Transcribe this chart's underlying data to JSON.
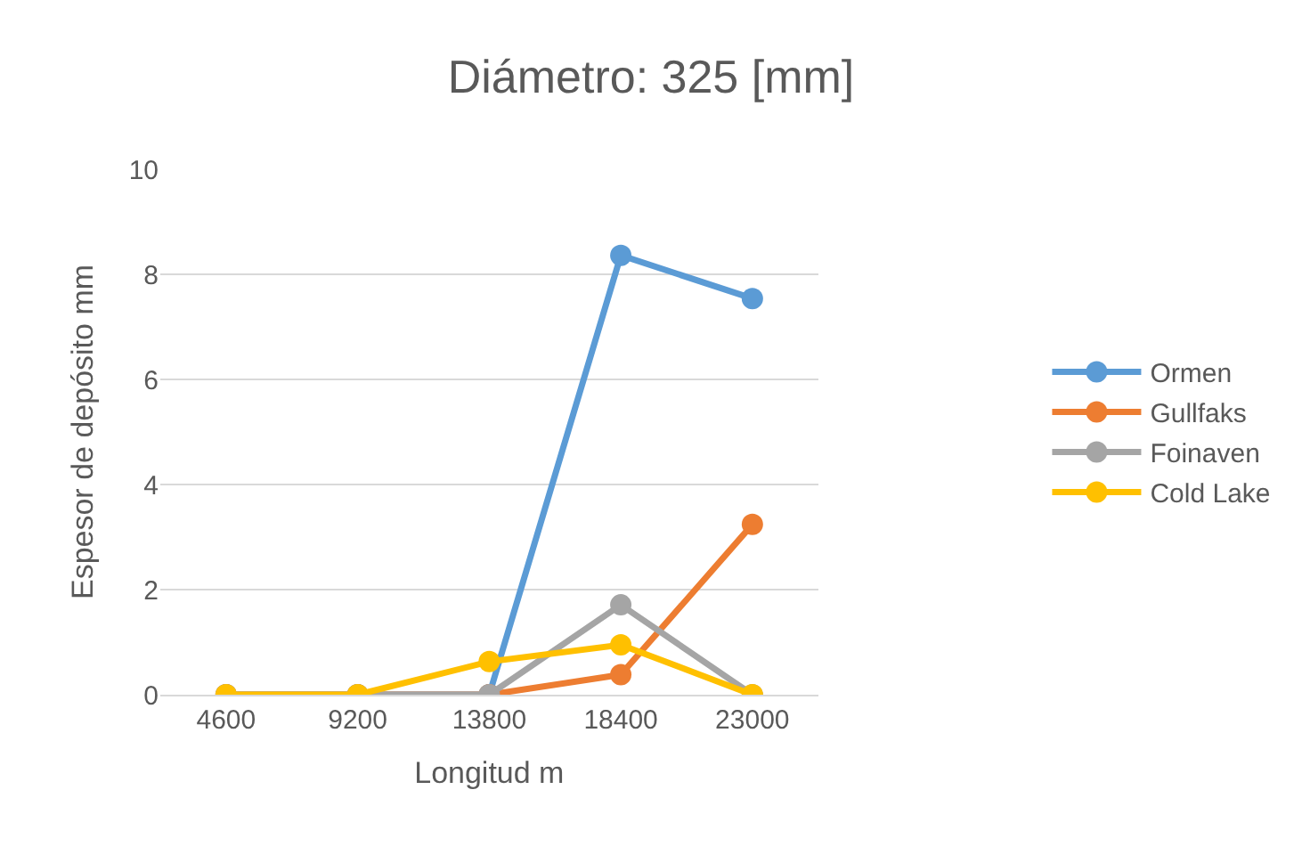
{
  "chart_data": {
    "type": "line",
    "title": "Diámetro: 325 [mm]",
    "xlabel": "Longitud m",
    "ylabel": "Espesor de depósito mm",
    "categories": [
      "4600",
      "9200",
      "13800",
      "18400",
      "23000"
    ],
    "series": [
      {
        "name": "Ormen",
        "color": "#5b9bd5",
        "values": [
          0,
          0,
          0,
          8.36,
          7.54
        ]
      },
      {
        "name": "Gullfaks",
        "color": "#ed7d31",
        "values": [
          0,
          0,
          0,
          0.38,
          3.24
        ]
      },
      {
        "name": "Foinaven",
        "color": "#a5a5a5",
        "values": [
          0,
          0,
          0,
          1.71,
          0
        ]
      },
      {
        "name": "Cold Lake",
        "color": "#ffc000",
        "values": [
          0,
          0,
          0.63,
          0.95,
          0
        ]
      }
    ],
    "ylim": [
      0,
      10
    ],
    "yticks": [
      0,
      2,
      4,
      6,
      8,
      10
    ],
    "grid": "y",
    "legend": "right",
    "marker": "circle",
    "line_style": "solid"
  }
}
